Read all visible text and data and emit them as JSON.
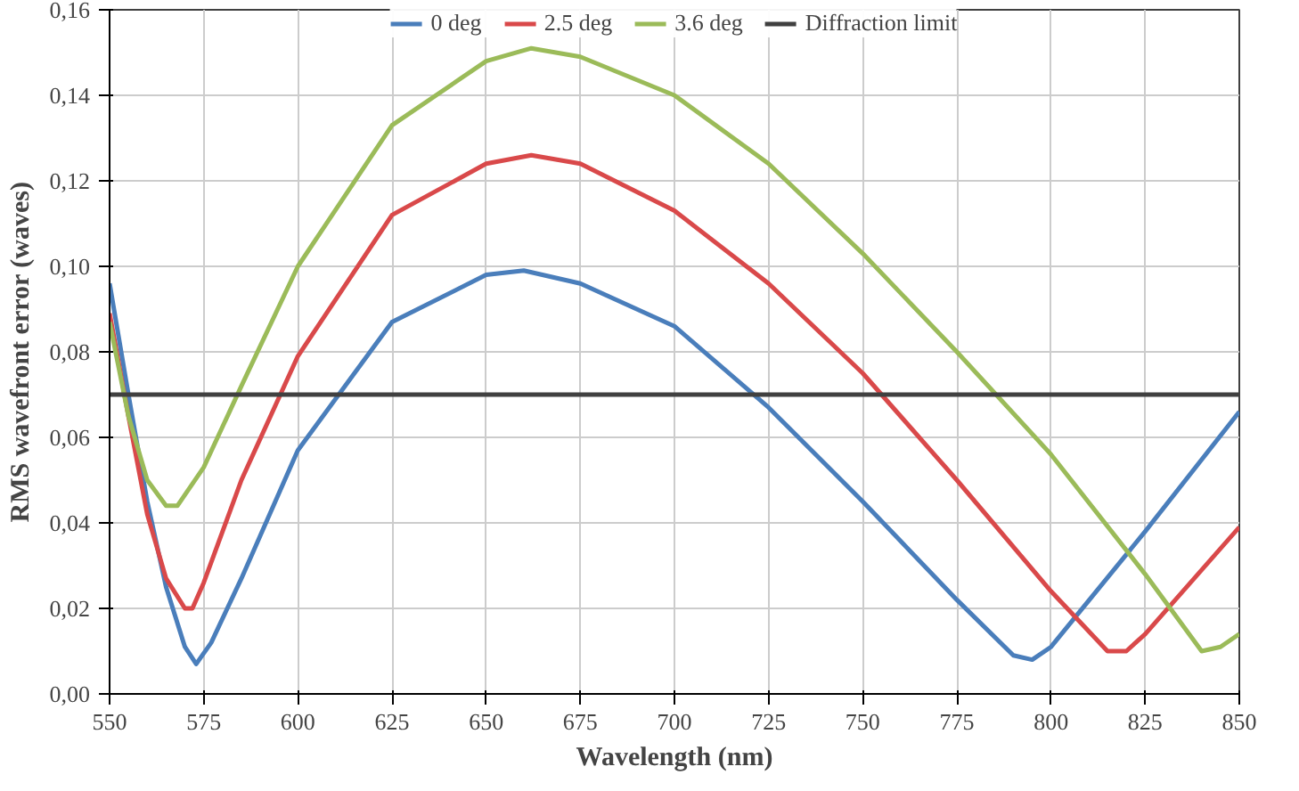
{
  "chart_data": {
    "type": "line",
    "xlabel": "Wavelength (nm)",
    "ylabel": "RMS wavefront error (waves)",
    "legend": "top",
    "grid": true,
    "marker": "none",
    "line_style": "solid",
    "xlim": [
      550,
      850
    ],
    "ylim": [
      0,
      0.16
    ],
    "xticks": [
      550,
      575,
      600,
      625,
      650,
      675,
      700,
      725,
      750,
      775,
      800,
      825,
      850
    ],
    "yticks": [
      {
        "value": 0,
        "label": "0,00"
      },
      {
        "value": 0.02,
        "label": "0,02"
      },
      {
        "value": 0.04,
        "label": "0,04"
      },
      {
        "value": 0.06,
        "label": "0,06"
      },
      {
        "value": 0.08,
        "label": "0,08"
      },
      {
        "value": 0.1,
        "label": "0,10"
      },
      {
        "value": 0.12,
        "label": "0,12"
      },
      {
        "value": 0.14,
        "label": "0,14"
      },
      {
        "value": 0.16,
        "label": "0,16"
      }
    ],
    "series": [
      {
        "name": "0 deg",
        "color": "#4a7ebb",
        "x": [
          550,
          555,
          560,
          565,
          570,
          573,
          577,
          585,
          600,
          625,
          650,
          660,
          675,
          700,
          725,
          750,
          775,
          790,
          795,
          800,
          825,
          850
        ],
        "values": [
          0.096,
          0.07,
          0.045,
          0.025,
          0.011,
          0.007,
          0.012,
          0.027,
          0.057,
          0.087,
          0.098,
          0.099,
          0.096,
          0.086,
          0.067,
          0.045,
          0.022,
          0.009,
          0.008,
          0.011,
          0.038,
          0.066
        ]
      },
      {
        "name": "2.5 deg",
        "color": "#d9494a",
        "x": [
          550,
          555,
          560,
          565,
          570,
          572,
          575,
          585,
          600,
          625,
          650,
          662,
          675,
          700,
          725,
          750,
          775,
          800,
          815,
          820,
          825,
          850
        ],
        "values": [
          0.089,
          0.065,
          0.042,
          0.027,
          0.02,
          0.02,
          0.026,
          0.05,
          0.079,
          0.112,
          0.124,
          0.126,
          0.124,
          0.113,
          0.096,
          0.075,
          0.05,
          0.024,
          0.01,
          0.01,
          0.014,
          0.039
        ]
      },
      {
        "name": "3.6 deg",
        "color": "#9bbb59",
        "x": [
          550,
          555,
          560,
          565,
          568,
          575,
          585,
          600,
          625,
          650,
          662,
          675,
          700,
          725,
          750,
          775,
          800,
          825,
          840,
          845,
          850
        ],
        "values": [
          0.087,
          0.065,
          0.05,
          0.044,
          0.044,
          0.053,
          0.072,
          0.1,
          0.133,
          0.148,
          0.151,
          0.149,
          0.14,
          0.124,
          0.103,
          0.08,
          0.056,
          0.028,
          0.01,
          0.011,
          0.014
        ]
      },
      {
        "name": "Diffraction limit",
        "color": "#404040",
        "x": [
          550,
          850
        ],
        "values": [
          0.07,
          0.07
        ]
      }
    ]
  }
}
